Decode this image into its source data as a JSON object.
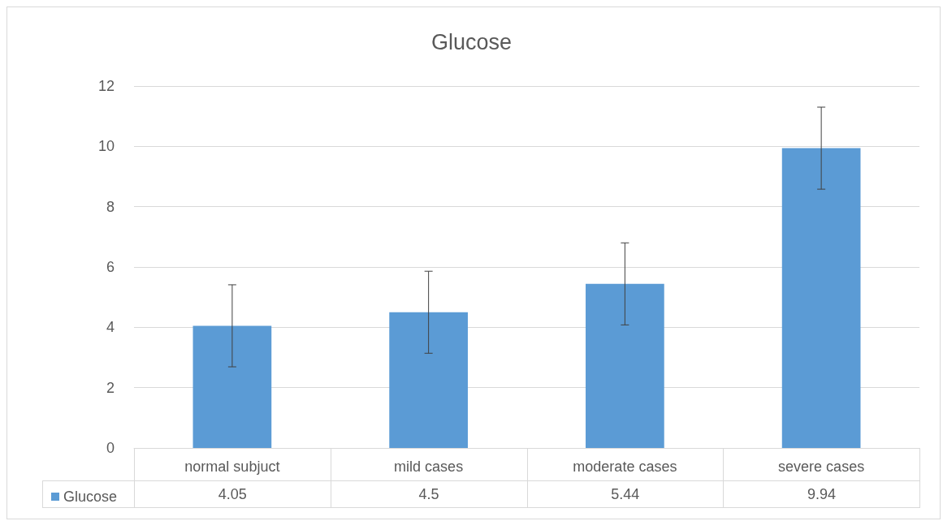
{
  "chart_data": {
    "type": "bar",
    "title": "Glucose",
    "categories": [
      "normal subjuct",
      "mild cases",
      "moderate cases",
      "severe cases"
    ],
    "series": [
      {
        "name": "Glucose",
        "color": "#5b9bd5",
        "values": [
          4.05,
          4.5,
          5.44,
          9.94
        ],
        "errors": [
          1.36,
          1.36,
          1.36,
          1.36
        ]
      }
    ],
    "ylim": [
      0,
      12
    ],
    "yticks": [
      0,
      2,
      4,
      6,
      8,
      10,
      12
    ],
    "grid": "y",
    "legend": "bottom",
    "data_labels": true
  }
}
